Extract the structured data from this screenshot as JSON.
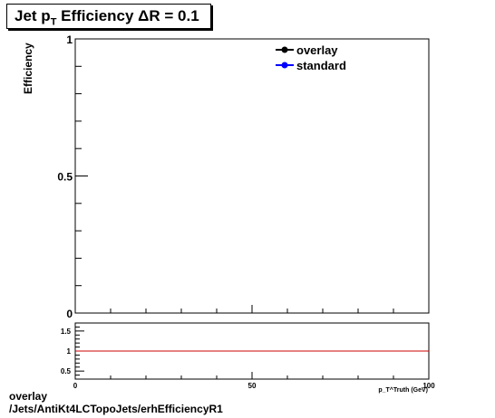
{
  "title": {
    "prefix": "Jet p",
    "subscript": "T",
    "suffix": " Efficiency  ΔR = 0.1"
  },
  "footer": {
    "line1": "overlay",
    "line2": "/Jets/AntiKt4LCTopoJets/erhEfficiencyR1"
  },
  "chart_data": [
    {
      "type": "line",
      "title": "Jet pT Efficiency ΔR = 0.1",
      "ylabel": "Efficiency",
      "xlabel": "",
      "xlim": [
        0,
        100
      ],
      "ylim": [
        0,
        1
      ],
      "x_ticks": [
        "0",
        "50",
        "100"
      ],
      "y_ticks": [
        "0",
        "0.5",
        "1"
      ],
      "legend": {
        "placement": "top-right",
        "entries": [
          {
            "name": "overlay",
            "color": "#000000"
          },
          {
            "name": "standard",
            "color": "#0000ff"
          }
        ]
      },
      "series": [
        {
          "name": "overlay",
          "color": "#000000",
          "points": []
        },
        {
          "name": "standard",
          "color": "#0000ff",
          "points": []
        }
      ]
    },
    {
      "type": "line",
      "xlabel": "p_T^Truth (GeV)",
      "xlim": [
        0,
        100
      ],
      "ylim": [
        0.3,
        1.7
      ],
      "x_ticks": [
        "0",
        "50",
        "100"
      ],
      "y_ticks": [
        "0.5",
        "1",
        "1.5"
      ],
      "reference_line": {
        "y": 1,
        "color": "#cc0000"
      }
    }
  ]
}
